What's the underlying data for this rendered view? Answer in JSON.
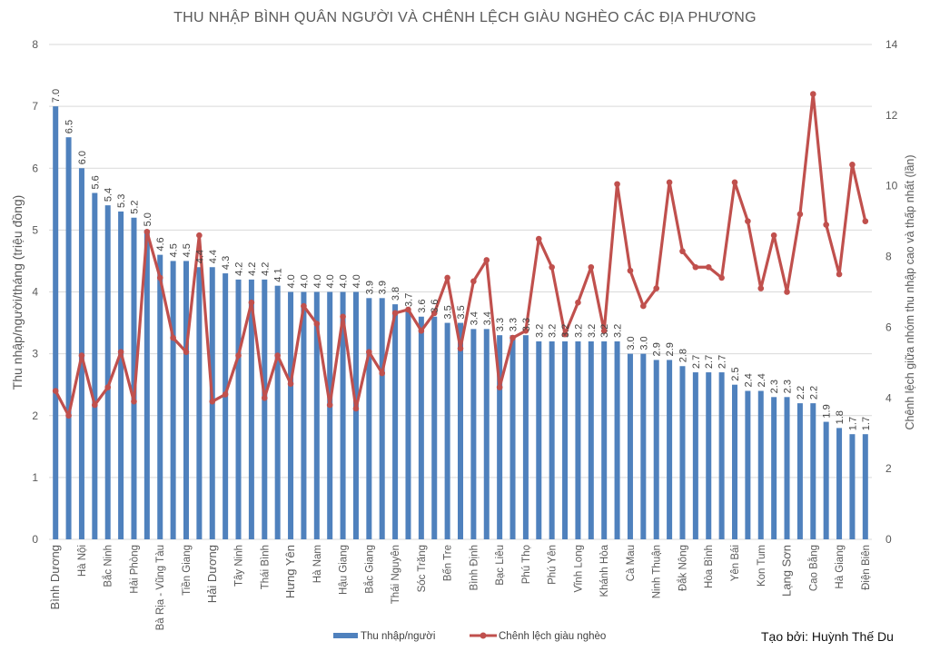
{
  "chart_data": {
    "type": "bar+line",
    "title": "THU NHẬP BÌNH QUÂN NGƯỜI VÀ CHÊNH LỆCH GIÀU NGHÈO CÁC ĐỊA PHƯƠNG",
    "ylabel": "Thu nhập/người/tháng (triệu đồng)",
    "y2label": "Chênh lệch giữa nhóm thu nhập cao và thấp nhất (lần)",
    "ylim": [
      0,
      8
    ],
    "y2lim": [
      0,
      14
    ],
    "yticks": [
      0,
      1,
      2,
      3,
      4,
      5,
      6,
      7,
      8
    ],
    "y2ticks": [
      0,
      2,
      4,
      6,
      8,
      10,
      12,
      14
    ],
    "grid": true,
    "legend_position": "bottom",
    "categories": [
      "Bình  Dương",
      "",
      "Hà Nội",
      "",
      "Bắc Ninh",
      "",
      "Hải Phòng",
      "",
      "Bà Rịa - Vũng Tàu",
      "",
      "Tiền Giang",
      "",
      "Hải Dương",
      "",
      "Tây Ninh",
      "",
      "Thái Bình",
      "",
      "Hưng Yên",
      "",
      "Hà Nam",
      "",
      "Hậu Giang",
      "",
      "Bắc Giang",
      "",
      "Thái  Nguyên",
      "",
      "Sóc Trăng",
      "",
      "Bến Tre",
      "",
      "Bình Định",
      "",
      "Bạc Liêu",
      "",
      "Phú Thọ",
      "",
      "Phú Yên",
      "",
      "Vĩnh Long",
      "",
      "Khánh  Hòa",
      "",
      "Cà Mau",
      "",
      "Ninh  Thuận",
      "",
      "Đắk Nông",
      "",
      "Hòa Bình",
      "",
      "Yên Bái",
      "",
      "Kon Tum",
      "",
      "Lạng Sơn",
      "",
      "Cao Bằng",
      "",
      "Hà Giang",
      "",
      "Điện Biên"
    ],
    "series": [
      {
        "name": "Thu nhập/người",
        "type": "bar",
        "axis": "left",
        "color": "#4f81bd",
        "values": [
          7.0,
          6.5,
          6.0,
          5.6,
          5.4,
          5.3,
          5.2,
          5.0,
          4.6,
          4.5,
          4.5,
          4.4,
          4.4,
          4.3,
          4.2,
          4.2,
          4.2,
          4.1,
          4.0,
          4.0,
          4.0,
          4.0,
          4.0,
          4.0,
          3.9,
          3.9,
          3.8,
          3.7,
          3.6,
          3.6,
          3.5,
          3.5,
          3.4,
          3.4,
          3.3,
          3.3,
          3.3,
          3.2,
          3.2,
          3.2,
          3.2,
          3.2,
          3.2,
          3.2,
          3.0,
          3.0,
          2.9,
          2.9,
          2.8,
          2.7,
          2.7,
          2.7,
          2.5,
          2.4,
          2.4,
          2.3,
          2.3,
          2.2,
          2.2,
          1.9,
          1.8,
          1.7,
          1.7
        ],
        "data_labels": [
          "7.0",
          "6.5",
          "6.0",
          "5.6",
          "5.4",
          "5.3",
          "5.2",
          "5.0",
          "4.6",
          "4.5",
          "4.5",
          "4.4",
          "4.4",
          "4.3",
          "4.2",
          "4.2",
          "4.2",
          "4.1",
          "4.0",
          "4.0",
          "4.0",
          "4.0",
          "4.0",
          "4.0",
          "3.9",
          "3.9",
          "3.8",
          "3.7",
          "3.6",
          "3.6",
          "3.5",
          "3.5",
          "3.4",
          "3.4",
          "3.3",
          "3.3",
          "3.3",
          "3.2",
          "3.2",
          "3.2",
          "3.2",
          "3.2",
          "3.2",
          "3.2",
          "3.0",
          "3.0",
          "2.9",
          "2.9",
          "2.8",
          "2.7",
          "2.7",
          "2.7",
          "2.5",
          "2.4",
          "2.4",
          "2.3",
          "2.3",
          "2.2",
          "2.2",
          "1.9",
          "1.8",
          "1.7",
          "1.7"
        ]
      },
      {
        "name": "Chênh lệch giàu nghèo",
        "type": "line",
        "axis": "right",
        "color": "#c0504d",
        "values": [
          4.2,
          3.5,
          5.2,
          3.8,
          4.3,
          5.3,
          3.9,
          8.7,
          7.4,
          5.7,
          5.3,
          8.6,
          3.9,
          4.1,
          5.2,
          6.7,
          4.0,
          5.2,
          4.4,
          6.6,
          6.1,
          3.8,
          6.3,
          3.7,
          5.3,
          4.7,
          6.4,
          6.5,
          5.9,
          6.4,
          7.4,
          5.4,
          7.3,
          7.9,
          4.3,
          5.7,
          5.9,
          8.5,
          7.7,
          5.8,
          6.7,
          7.7,
          5.9,
          10.05,
          7.6,
          6.6,
          7.1,
          10.1,
          8.15,
          7.7,
          7.7,
          7.4,
          10.1,
          9.0,
          7.1,
          8.6,
          7.0,
          9.2,
          12.6,
          8.9,
          7.5,
          10.6,
          9.0
        ]
      }
    ]
  },
  "credit": "Tạo bởi: Huỳnh Thế Du"
}
